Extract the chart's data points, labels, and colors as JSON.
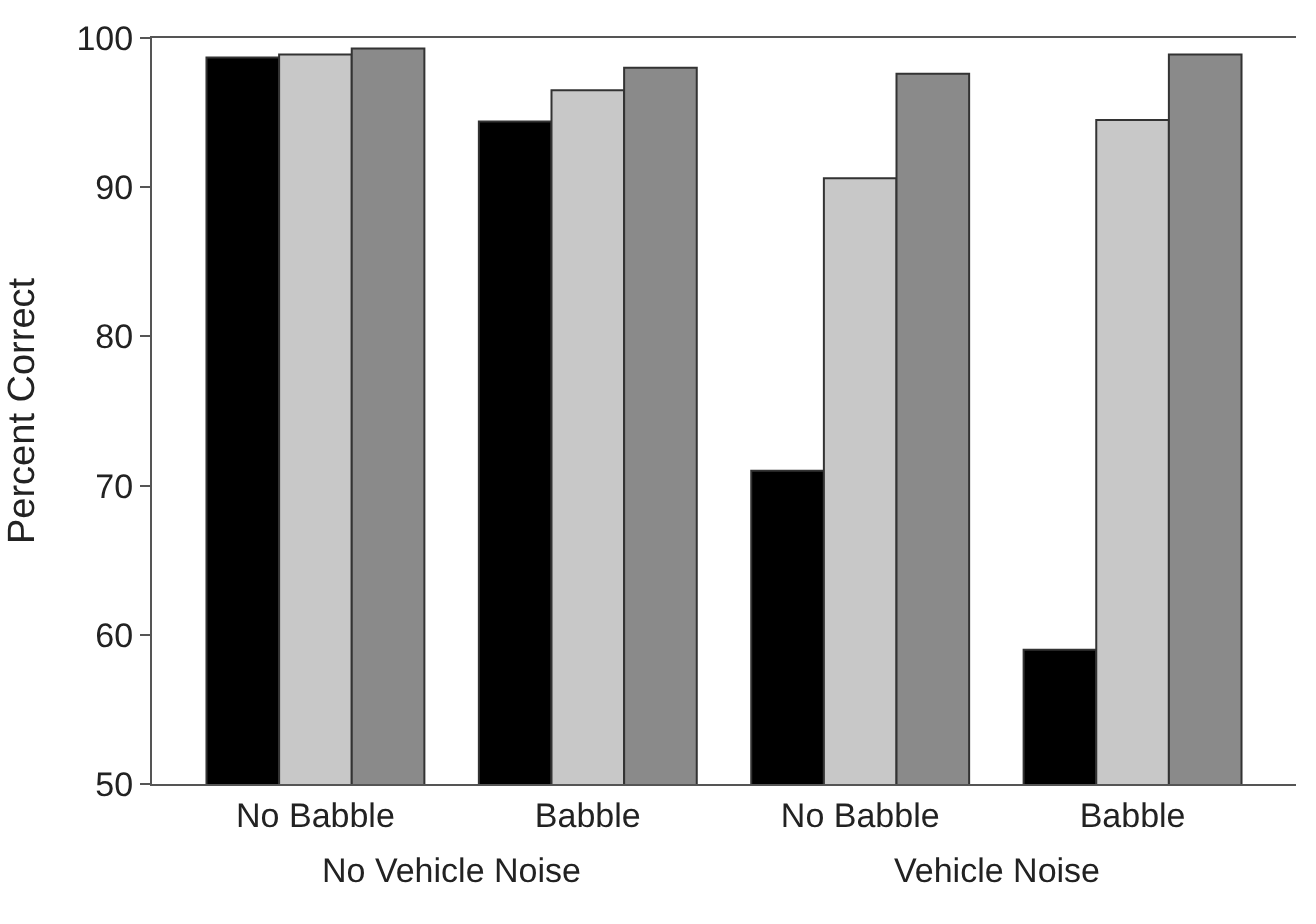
{
  "chart_data": {
    "type": "bar",
    "ylabel": "Percent Correct",
    "categories": [
      "No Babble",
      "Babble",
      "No Babble",
      "Babble"
    ],
    "series": [
      {
        "color": "#000000",
        "values": [
          98.7,
          94.4,
          71.0,
          59.0
        ]
      },
      {
        "color": "#c8c8c8",
        "values": [
          98.9,
          96.5,
          90.6,
          94.5
        ]
      },
      {
        "color": "#8a8a8a",
        "values": [
          99.3,
          98.0,
          97.6,
          98.9
        ]
      }
    ],
    "annotations": [
      "No Vehicle Noise",
      "Vehicle Noise"
    ],
    "ylim": [
      50,
      100
    ],
    "yticks": [
      50,
      60,
      70,
      80,
      90,
      100
    ]
  }
}
